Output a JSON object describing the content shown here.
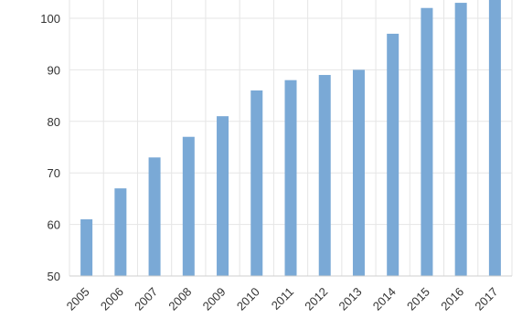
{
  "chart_data": {
    "type": "bar",
    "categories": [
      "2005",
      "2006",
      "2007",
      "2008",
      "2009",
      "2010",
      "2011",
      "2012",
      "2013",
      "2014",
      "2015",
      "2016",
      "2017"
    ],
    "series": [
      {
        "values": [
          61,
          67,
          73,
          77,
          81,
          86,
          88,
          89,
          90,
          97,
          102,
          103,
          104
        ]
      }
    ],
    "ylim": [
      50,
      104
    ],
    "yticks": [
      50,
      60,
      70,
      80,
      90,
      100
    ],
    "grid": true,
    "legend": "none",
    "colors": {
      "bar": "#7aa9d6",
      "grid": "#e6e6e6",
      "axis": "#cfcfcf",
      "text": "#333333"
    }
  }
}
